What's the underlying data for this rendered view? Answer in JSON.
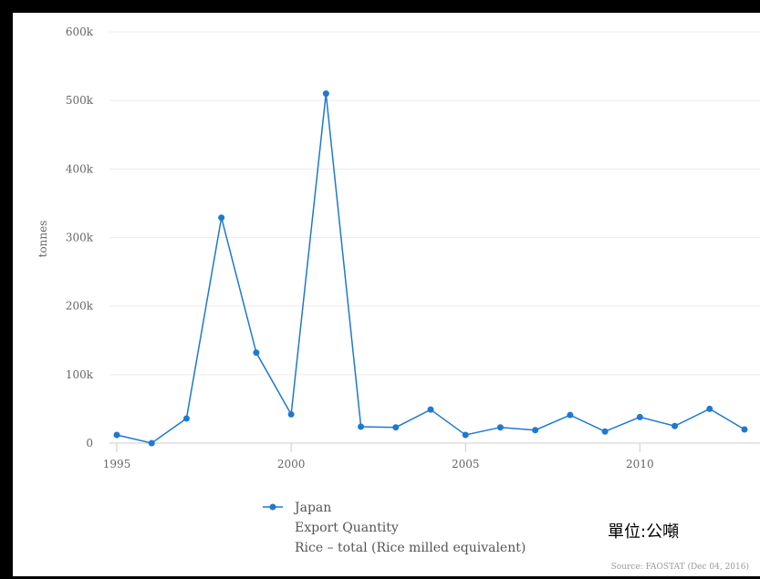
{
  "chart_data": {
    "type": "line",
    "ylabel": "tonnes",
    "xlabel": "",
    "ylim": [
      0,
      600000
    ],
    "xlim": [
      1995,
      2013
    ],
    "y_ticks": [
      {
        "value": 0,
        "label": "0"
      },
      {
        "value": 100000,
        "label": "100k"
      },
      {
        "value": 200000,
        "label": "200k"
      },
      {
        "value": 300000,
        "label": "300k"
      },
      {
        "value": 400000,
        "label": "400k"
      },
      {
        "value": 500000,
        "label": "500k"
      },
      {
        "value": 600000,
        "label": "600k"
      }
    ],
    "x_ticks": [
      {
        "value": 1995,
        "label": "1995"
      },
      {
        "value": 2000,
        "label": "2000"
      },
      {
        "value": 2005,
        "label": "2005"
      },
      {
        "value": 2010,
        "label": "2010"
      }
    ],
    "grid": true,
    "series": [
      {
        "name": "Japan",
        "color": "#1f78d1",
        "x": [
          1995,
          1996,
          1997,
          1998,
          1999,
          2000,
          2001,
          2002,
          2003,
          2004,
          2005,
          2006,
          2007,
          2008,
          2009,
          2010,
          2011,
          2012,
          2013
        ],
        "values": [
          12000,
          0,
          36000,
          329000,
          132000,
          42000,
          510000,
          24000,
          23000,
          49000,
          12000,
          23000,
          19000,
          41000,
          17000,
          38000,
          25000,
          50000,
          20000
        ]
      }
    ],
    "legend": {
      "position": "bottom-center",
      "label": "Japan",
      "lines": [
        "Export Quantity",
        "Rice – total (Rice milled equivalent)"
      ]
    }
  },
  "unit_label": "單位:公噸",
  "source": "Source: FAOSTAT (Dec 04, 2016)"
}
